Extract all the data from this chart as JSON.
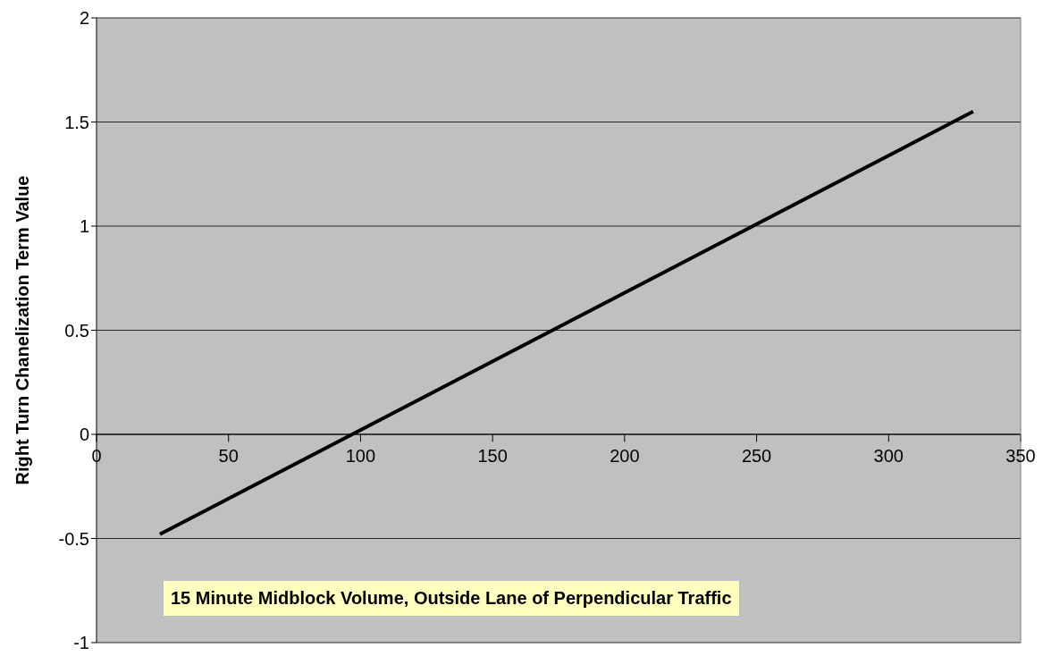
{
  "chart_data": {
    "type": "line",
    "xlabel": "15 Minute Midblock Volume, Outside Lane of Perpendicular Traffic",
    "ylabel": "Right Turn Chanelization Term Value",
    "series": [
      {
        "color": "#000000",
        "x": [
          24,
          332
        ],
        "values": [
          -0.48,
          1.55
        ]
      }
    ],
    "xlim": [
      0,
      350
    ],
    "xticks": [
      0,
      50,
      100,
      150,
      200,
      250,
      300,
      350
    ],
    "ylim": [
      -1,
      2
    ],
    "yticks": [
      -1,
      -0.5,
      0,
      0.5,
      1,
      1.5,
      2
    ],
    "grid": "y"
  }
}
